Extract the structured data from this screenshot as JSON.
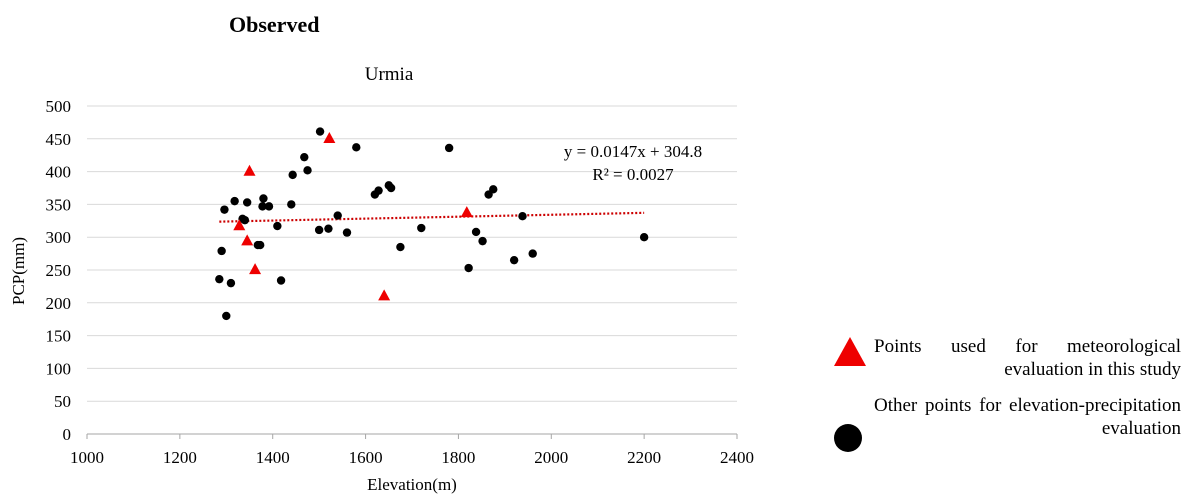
{
  "panel_label": "Observed",
  "chart_data": {
    "type": "scatter",
    "title": "Urmia",
    "xlabel": "Elevation(m)",
    "ylabel": "PCP(mm)",
    "xlim": [
      1000,
      2400
    ],
    "ylim": [
      0,
      500
    ],
    "x_ticks": [
      1000,
      1200,
      1400,
      1600,
      1800,
      2000,
      2200,
      2400
    ],
    "y_ticks": [
      0,
      50,
      100,
      150,
      200,
      250,
      300,
      350,
      400,
      450,
      500
    ],
    "grid": "horizontal",
    "series": [
      {
        "name": "Points used for meteorological evaluation in this study",
        "marker": "triangle",
        "color": "#ee0000",
        "points": [
          [
            1328,
            317
          ],
          [
            1345,
            294
          ],
          [
            1350,
            400
          ],
          [
            1362,
            250
          ],
          [
            1522,
            450
          ],
          [
            1640,
            210
          ],
          [
            1818,
            337
          ]
        ]
      },
      {
        "name": "Other points for elevation-precipitation evaluation",
        "marker": "circle",
        "color": "#000000",
        "points": [
          [
            1285,
            236
          ],
          [
            1290,
            279
          ],
          [
            1296,
            342
          ],
          [
            1300,
            180
          ],
          [
            1310,
            230
          ],
          [
            1318,
            355
          ],
          [
            1335,
            328
          ],
          [
            1340,
            326
          ],
          [
            1345,
            353
          ],
          [
            1368,
            288
          ],
          [
            1373,
            288
          ],
          [
            1378,
            347
          ],
          [
            1380,
            359
          ],
          [
            1392,
            347
          ],
          [
            1410,
            317
          ],
          [
            1418,
            234
          ],
          [
            1440,
            350
          ],
          [
            1443,
            395
          ],
          [
            1468,
            422
          ],
          [
            1475,
            402
          ],
          [
            1500,
            311
          ],
          [
            1502,
            461
          ],
          [
            1520,
            313
          ],
          [
            1540,
            333
          ],
          [
            1560,
            307
          ],
          [
            1580,
            437
          ],
          [
            1620,
            365
          ],
          [
            1628,
            371
          ],
          [
            1650,
            379
          ],
          [
            1655,
            375
          ],
          [
            1675,
            285
          ],
          [
            1720,
            314
          ],
          [
            1780,
            436
          ],
          [
            1822,
            253
          ],
          [
            1838,
            308
          ],
          [
            1852,
            294
          ],
          [
            1865,
            365
          ],
          [
            1875,
            373
          ],
          [
            1920,
            265
          ],
          [
            1938,
            332
          ],
          [
            1960,
            275
          ],
          [
            2200,
            300
          ]
        ]
      }
    ],
    "trendline": {
      "type": "linear",
      "slope": 0.0147,
      "intercept": 304.8,
      "x_range": [
        1285,
        2200
      ],
      "style": "dotted",
      "color": "#cc0000",
      "equation": "y = 0.0147x + 304.8",
      "r_squared": "R² = 0.0027"
    }
  },
  "legend": {
    "triangle_label": "Points used for meteorological evaluation in this study",
    "circle_label": "Other points for elevation-precipitation evaluation",
    "triangle_color": "#ee0000",
    "circle_color": "#000000"
  }
}
